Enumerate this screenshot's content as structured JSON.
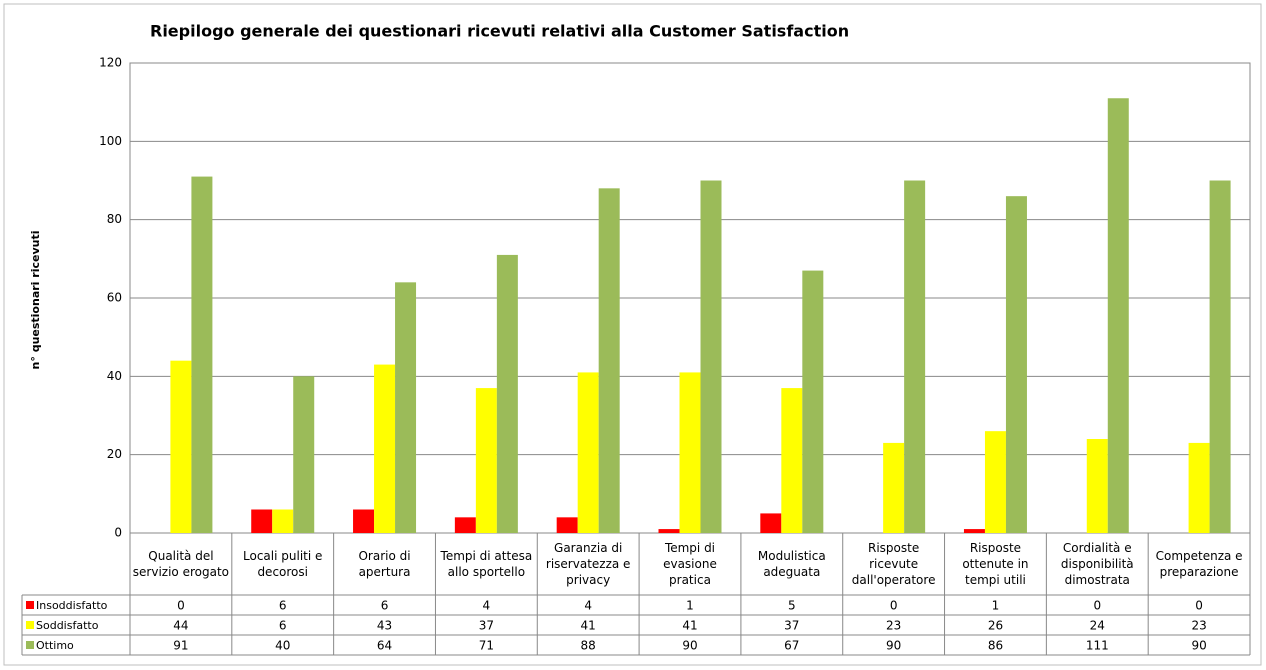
{
  "chart_data": {
    "type": "bar",
    "title": "Riepilogo generale dei questionari ricevuti relativi alla Customer Satisfaction",
    "ylabel": "n° questionari ricevuti",
    "categories": [
      "Qualità del servizio erogato",
      "Locali puliti e decorosi",
      "Orario di apertura",
      "Tempi di attesa allo sportello",
      "Garanzia di riservatezza e privacy",
      "Tempi di evasione pratica",
      "Modulistica adeguata",
      "Risposte ricevute dall'operatore",
      "Risposte ottenute in tempi utili",
      "Cordialità e disponibilità dimostrata",
      "Competenza e preparazione"
    ],
    "series": [
      {
        "name": "Insoddisfatto",
        "color": "#ff0000",
        "values": [
          0,
          6,
          6,
          4,
          4,
          1,
          5,
          0,
          1,
          0,
          0
        ]
      },
      {
        "name": "Soddisfatto",
        "color": "#ffff00",
        "values": [
          44,
          6,
          43,
          37,
          41,
          41,
          37,
          23,
          26,
          24,
          23
        ]
      },
      {
        "name": "Ottimo",
        "color": "#9bbb59",
        "values": [
          91,
          40,
          64,
          71,
          88,
          90,
          67,
          90,
          86,
          111,
          90
        ]
      }
    ],
    "ylim": [
      0,
      120
    ],
    "yticks": [
      0,
      20,
      40,
      60,
      80,
      100,
      120
    ],
    "grid": true
  }
}
